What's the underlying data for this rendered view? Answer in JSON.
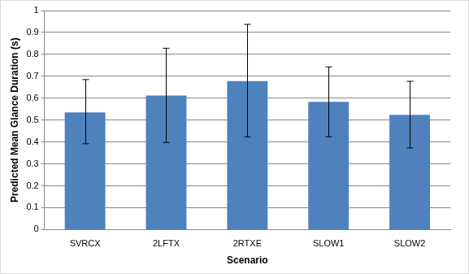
{
  "chart_data": {
    "type": "bar",
    "x_label": "Scenario",
    "y_label": "Predicted Mean Glance Duration (s)",
    "categories": [
      "SVRCX",
      "2LFTX",
      "2RTXE",
      "SLOW1",
      "SLOW2"
    ],
    "values": [
      0.535,
      0.612,
      0.678,
      0.583,
      0.524
    ],
    "error_low": [
      0.392,
      0.398,
      0.423,
      0.424,
      0.373
    ],
    "error_high": [
      0.685,
      0.828,
      0.937,
      0.743,
      0.677
    ],
    "color": "#4f81bd",
    "ylim": [
      0,
      1
    ],
    "yticks": [
      0,
      0.1,
      0.2,
      0.3,
      0.4,
      0.5,
      0.6,
      0.7,
      0.8,
      0.9,
      1
    ],
    "grid": true
  }
}
